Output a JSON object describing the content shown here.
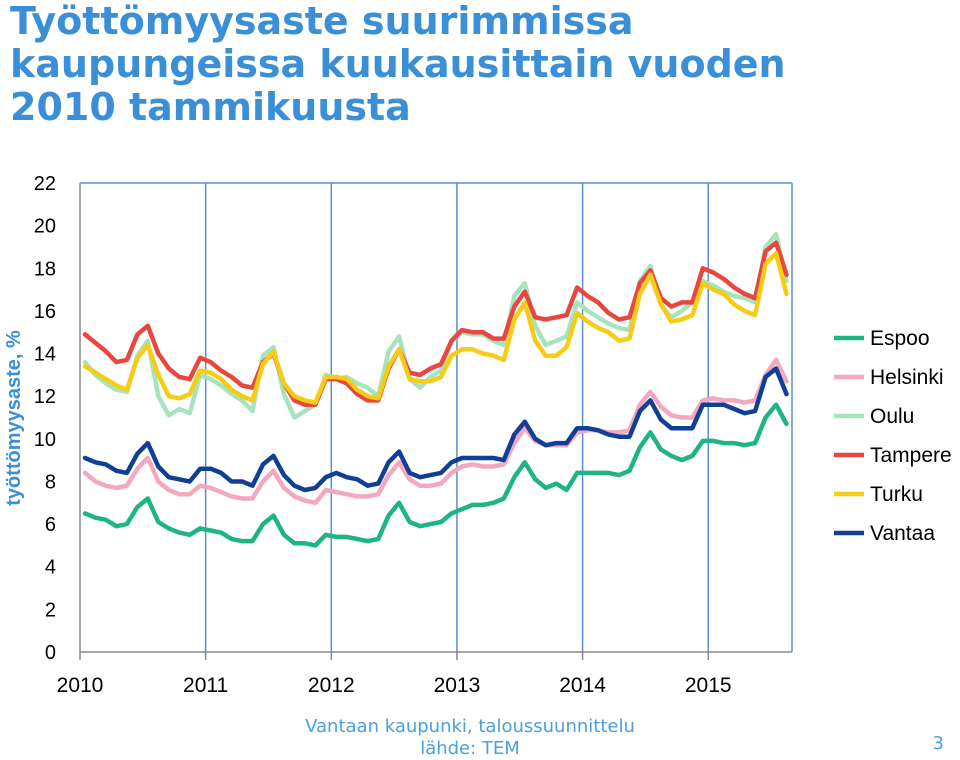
{
  "slide": {
    "title_lines": [
      "Työttömyysaste suurimmissa",
      "kaupungeissa kuukausittain vuoden",
      "2010 tammikuusta"
    ],
    "footer_line1": "Vantaan kaupunki, taloussuunnittelu",
    "footer_line2": "lähde: TEM",
    "page_number": "3"
  },
  "colors": {
    "title": "#3a8fd6",
    "gridline": "#5b8fd0",
    "axis": "#8a8a8a",
    "Espoo": "#1db486",
    "Helsinki": "#f4a7c0",
    "Oulu": "#a6e3bf",
    "Tampere": "#e8473f",
    "Turku": "#f6cd16",
    "Vantaa": "#103f96"
  },
  "chart_data": {
    "type": "line",
    "title": "",
    "xlabel": "",
    "ylabel": "työttömyysaste, %",
    "x_start": "2010-01",
    "x_tick_labels": [
      "2010",
      "2011",
      "2012",
      "2013",
      "2014",
      "2015"
    ],
    "y_ticks": [
      0,
      2,
      4,
      6,
      8,
      10,
      12,
      14,
      16,
      18,
      20,
      22
    ],
    "ylim": [
      0,
      22
    ],
    "grid": "vertical-yearly",
    "legend": "right",
    "series": [
      {
        "name": "Espoo",
        "values": [
          6.5,
          6.3,
          6.2,
          5.9,
          6.0,
          6.8,
          7.2,
          6.1,
          5.8,
          5.6,
          5.5,
          5.8,
          5.7,
          5.6,
          5.3,
          5.2,
          5.2,
          6.0,
          6.4,
          5.5,
          5.1,
          5.1,
          5.0,
          5.5,
          5.4,
          5.4,
          5.3,
          5.2,
          5.3,
          6.4,
          7.0,
          6.1,
          5.9,
          6.0,
          6.1,
          6.5,
          6.7,
          6.9,
          6.9,
          7.0,
          7.2,
          8.2,
          8.9,
          8.1,
          7.7,
          7.9,
          7.6,
          8.4,
          8.4,
          8.4,
          8.4,
          8.3,
          8.5,
          9.6,
          10.3,
          9.5,
          9.2,
          9.0,
          9.2,
          9.9,
          9.9,
          9.8,
          9.8,
          9.7,
          9.8,
          11.0,
          11.6,
          10.7
        ]
      },
      {
        "name": "Helsinki",
        "values": [
          8.4,
          8.0,
          7.8,
          7.7,
          7.8,
          8.6,
          9.1,
          8.0,
          7.6,
          7.4,
          7.4,
          7.8,
          7.7,
          7.5,
          7.3,
          7.2,
          7.2,
          8.0,
          8.5,
          7.7,
          7.3,
          7.1,
          7.0,
          7.6,
          7.5,
          7.4,
          7.3,
          7.3,
          7.4,
          8.3,
          8.9,
          8.1,
          7.8,
          7.8,
          7.9,
          8.4,
          8.7,
          8.8,
          8.7,
          8.7,
          8.8,
          9.8,
          10.5,
          9.9,
          9.7,
          9.7,
          9.7,
          10.3,
          10.4,
          10.4,
          10.3,
          10.3,
          10.4,
          11.6,
          12.2,
          11.5,
          11.1,
          11.0,
          11.0,
          11.8,
          11.9,
          11.8,
          11.8,
          11.7,
          11.8,
          13.0,
          13.7,
          12.7
        ]
      },
      {
        "name": "Oulu",
        "values": [
          13.6,
          13.0,
          12.6,
          12.3,
          12.2,
          13.9,
          14.6,
          12.0,
          11.1,
          11.4,
          11.2,
          13.0,
          12.8,
          12.5,
          12.1,
          11.8,
          11.3,
          13.9,
          14.3,
          12.1,
          11.0,
          11.3,
          11.6,
          13.0,
          12.8,
          12.9,
          12.6,
          12.4,
          12.0,
          14.1,
          14.8,
          12.8,
          12.4,
          12.9,
          13.2,
          14.6,
          15.0,
          14.9,
          14.9,
          14.6,
          14.4,
          16.7,
          17.3,
          15.3,
          14.4,
          14.6,
          14.8,
          16.4,
          16.0,
          15.7,
          15.4,
          15.2,
          15.1,
          17.4,
          18.1,
          16.3,
          15.7,
          16.0,
          16.4,
          17.4,
          17.2,
          16.9,
          16.7,
          16.6,
          16.4,
          19.0,
          19.6,
          17.4
        ]
      },
      {
        "name": "Tampere",
        "values": [
          14.9,
          14.5,
          14.1,
          13.6,
          13.7,
          14.9,
          15.3,
          14.0,
          13.3,
          12.9,
          12.8,
          13.8,
          13.6,
          13.2,
          12.9,
          12.5,
          12.4,
          13.6,
          14.0,
          12.6,
          11.8,
          11.6,
          11.6,
          12.8,
          12.8,
          12.6,
          12.1,
          11.8,
          11.8,
          13.3,
          14.2,
          13.1,
          13.0,
          13.3,
          13.5,
          14.6,
          15.1,
          15.0,
          15.0,
          14.7,
          14.7,
          16.2,
          16.9,
          15.7,
          15.6,
          15.7,
          15.8,
          17.1,
          16.7,
          16.4,
          15.9,
          15.6,
          15.7,
          17.3,
          17.9,
          16.6,
          16.2,
          16.4,
          16.4,
          18.0,
          17.8,
          17.5,
          17.1,
          16.8,
          16.6,
          18.8,
          19.2,
          17.7
        ]
      },
      {
        "name": "Turku",
        "values": [
          13.4,
          13.1,
          12.8,
          12.5,
          12.3,
          13.8,
          14.4,
          13.0,
          12.0,
          11.9,
          12.1,
          13.2,
          13.1,
          12.8,
          12.3,
          12.0,
          11.8,
          13.5,
          14.1,
          12.6,
          12.0,
          11.8,
          11.7,
          12.9,
          12.9,
          12.8,
          12.3,
          12.0,
          11.9,
          13.4,
          14.2,
          12.8,
          12.7,
          12.7,
          12.9,
          13.9,
          14.2,
          14.2,
          14.0,
          13.9,
          13.7,
          15.6,
          16.4,
          14.6,
          13.9,
          13.9,
          14.3,
          15.9,
          15.5,
          15.2,
          15.0,
          14.6,
          14.7,
          16.8,
          17.7,
          16.3,
          15.5,
          15.6,
          15.8,
          17.3,
          17.0,
          16.8,
          16.3,
          16.0,
          15.8,
          18.2,
          18.7,
          16.8
        ]
      },
      {
        "name": "Vantaa",
        "values": [
          9.1,
          8.9,
          8.8,
          8.5,
          8.4,
          9.3,
          9.8,
          8.7,
          8.2,
          8.1,
          8.0,
          8.6,
          8.6,
          8.4,
          8.0,
          8.0,
          7.8,
          8.8,
          9.2,
          8.3,
          7.8,
          7.6,
          7.7,
          8.2,
          8.4,
          8.2,
          8.1,
          7.8,
          7.9,
          8.9,
          9.4,
          8.4,
          8.2,
          8.3,
          8.4,
          8.9,
          9.1,
          9.1,
          9.1,
          9.1,
          9.0,
          10.2,
          10.8,
          10.0,
          9.7,
          9.8,
          9.8,
          10.5,
          10.5,
          10.4,
          10.2,
          10.1,
          10.1,
          11.3,
          11.8,
          10.9,
          10.5,
          10.5,
          10.5,
          11.6,
          11.6,
          11.6,
          11.4,
          11.2,
          11.3,
          12.9,
          13.3,
          12.1
        ]
      }
    ]
  }
}
